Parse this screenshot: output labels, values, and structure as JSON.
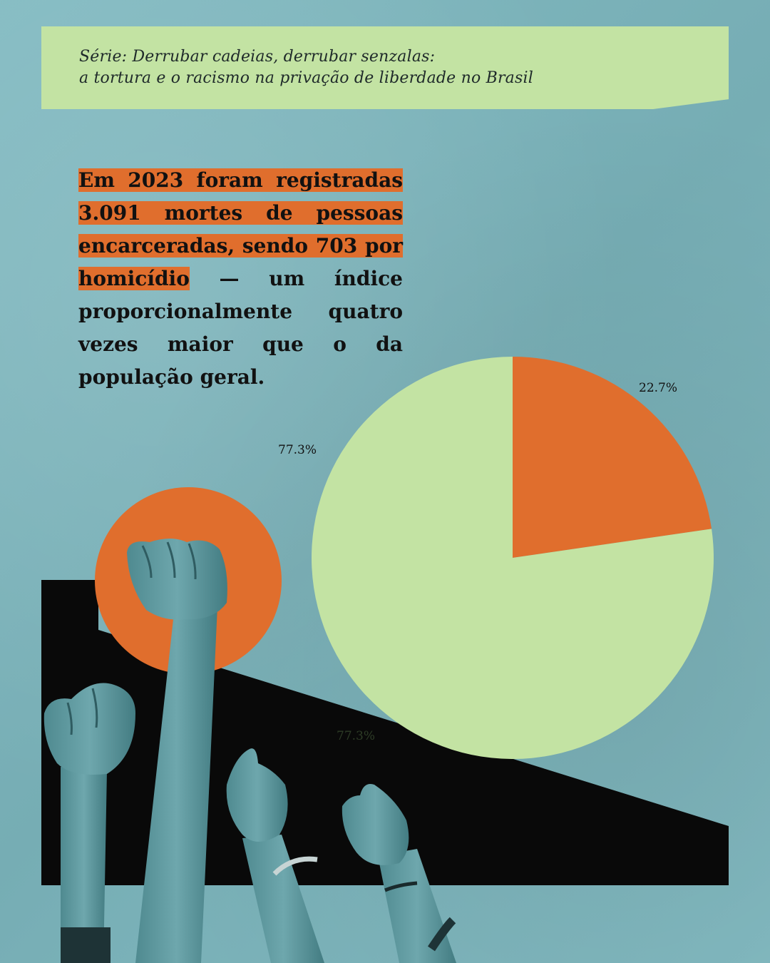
{
  "series": {
    "line1": "Série: Derrubar cadeias, derrubar senzalas:",
    "line2": "a tortura e o racismo na privação de liberdade no Brasil"
  },
  "headline": {
    "highlighted": "Em 2023 foram registradas 3.091 mortes de pessoas encarceradas, sendo 703 por homicídio",
    "rest": " — um índice proporcionalmente quatro vezes maior que o da população geral."
  },
  "colors": {
    "background": "#7fb6bd",
    "accent_orange": "#e06e2d",
    "light_green": "#c3e3a3",
    "black": "#090909"
  },
  "chart_data": {
    "type": "pie",
    "slices": [
      {
        "label": "22.7%",
        "value": 22.7,
        "color": "#e06e2d"
      },
      {
        "label": "77.3%",
        "value": 77.3,
        "color": "#c3e3a3"
      }
    ],
    "extra_labels": [
      "77.3%",
      "77.3%"
    ]
  }
}
